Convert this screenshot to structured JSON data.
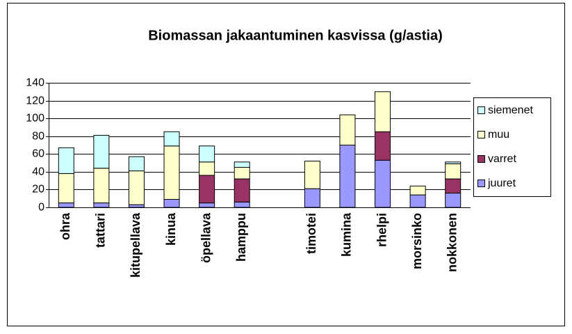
{
  "chart_data": {
    "type": "stacked_bar",
    "title": "Biomassan jakaantuminen kasvissa (g/astia)",
    "categories": [
      "ohra",
      "tattari",
      "kitupellava",
      "kinua",
      "öpellava",
      "hamppu",
      null,
      "timotei",
      "kumina",
      "rhelpi",
      "morsinko",
      "nokkonen"
    ],
    "series": [
      {
        "name": "juuret",
        "color": "#9999ff",
        "values": [
          5,
          5,
          3,
          9,
          5,
          6,
          null,
          21,
          70,
          53,
          14,
          16
        ]
      },
      {
        "name": "varret",
        "color": "#993366",
        "values": [
          0,
          0,
          0,
          0,
          31,
          26,
          null,
          0,
          0,
          32,
          0,
          16
        ]
      },
      {
        "name": "muu",
        "color": "#ffffcc",
        "values": [
          33,
          39,
          38,
          60,
          15,
          13,
          null,
          31,
          34,
          45,
          10,
          17
        ]
      },
      {
        "name": "siemenet",
        "color": "#ccffff",
        "values": [
          29,
          37,
          16,
          16,
          18,
          6,
          null,
          0,
          0,
          0,
          0,
          2
        ]
      }
    ],
    "ylim": [
      0,
      140
    ],
    "yticks": [
      0,
      20,
      40,
      60,
      80,
      100,
      120,
      140
    ],
    "grid": true,
    "legend": "right"
  }
}
